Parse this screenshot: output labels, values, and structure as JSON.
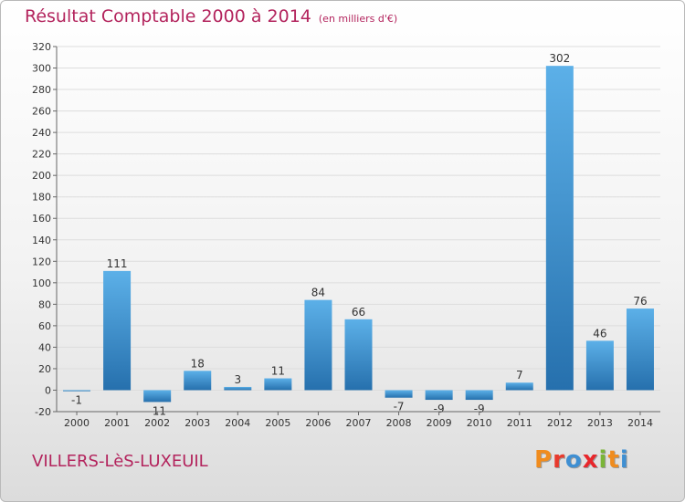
{
  "header": {
    "title": "Résultat Comptable 2000 à 2014",
    "unit": "(en milliers d'€)"
  },
  "footer": {
    "commune": "VILLERS-LèS-LUXEUIL"
  },
  "logo": {
    "letters": [
      "P",
      "r",
      "o",
      "x",
      "i",
      "t",
      "i"
    ],
    "colors": [
      "#f08c1e",
      "#e83a2d",
      "#3f8fd2",
      "#e8262b",
      "#7ab538",
      "#f08c1e",
      "#3f8fd2"
    ]
  },
  "colors": {
    "title": "#b3245d",
    "bar_light": "#5cb0e8",
    "bar_dark": "#2670ad",
    "gridline": "#dddddd",
    "axis_text": "#333333"
  },
  "chart_data": {
    "type": "bar",
    "categories": [
      "2000",
      "2001",
      "2002",
      "2003",
      "2004",
      "2005",
      "2006",
      "2007",
      "2008",
      "2009",
      "2010",
      "2011",
      "2012",
      "2013",
      "2014"
    ],
    "values": [
      -1,
      111,
      -11,
      18,
      3,
      11,
      84,
      66,
      -7,
      -9,
      -9,
      7,
      302,
      46,
      76
    ],
    "data_labels": [
      "-1",
      "111",
      "-11",
      "18",
      "3",
      "11",
      "84",
      "66",
      "-7",
      "-9",
      "-9",
      "7",
      "302",
      "46",
      "76"
    ],
    "ylim": [
      -20,
      320
    ],
    "yticks": [
      -20,
      0,
      20,
      40,
      60,
      80,
      100,
      120,
      140,
      160,
      180,
      200,
      220,
      240,
      260,
      280,
      300,
      320
    ],
    "grid": true,
    "legend": "none"
  }
}
